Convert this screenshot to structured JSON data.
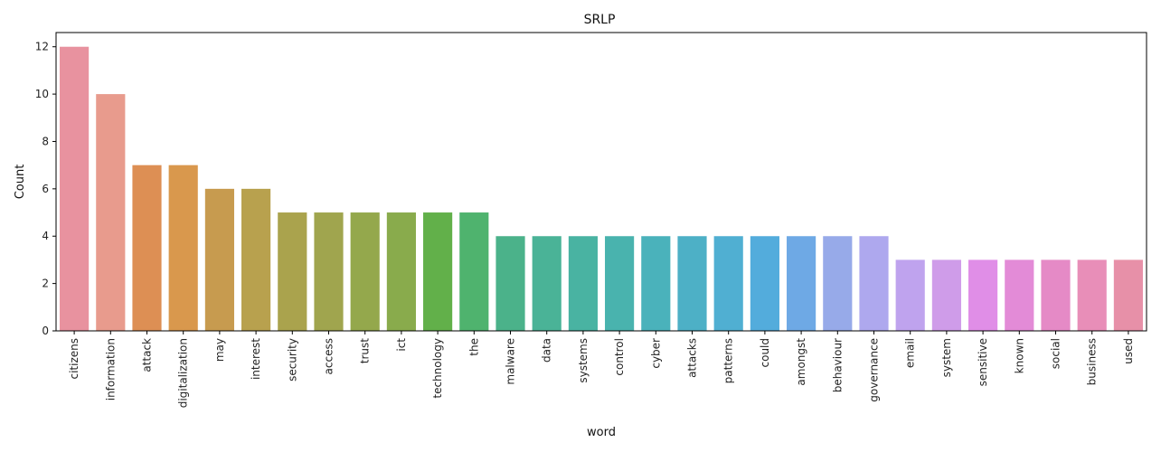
{
  "chart_data": {
    "type": "bar",
    "title": "SRLP",
    "xlabel": "word",
    "ylabel": "Count",
    "ylim": [
      0,
      12.6
    ],
    "yticks": [
      0,
      2,
      4,
      6,
      8,
      10,
      12
    ],
    "grid": false,
    "categories": [
      "citizens",
      "information",
      "attack",
      "digitalization",
      "may",
      "interest",
      "security",
      "access",
      "trust",
      "ict",
      "technology",
      "the",
      "malware",
      "data",
      "systems",
      "control",
      "cyber",
      "attacks",
      "patterns",
      "could",
      "amongst",
      "behaviour",
      "governance",
      "email",
      "system",
      "sensitive",
      "known",
      "social",
      "business",
      "used"
    ],
    "values": [
      12,
      10,
      7,
      7,
      6,
      6,
      5,
      5,
      5,
      5,
      5,
      5,
      4,
      4,
      4,
      4,
      4,
      4,
      4,
      4,
      4,
      4,
      4,
      3,
      3,
      3,
      3,
      3,
      3,
      3
    ],
    "colors": [
      "#e8929f",
      "#e89b8d",
      "#dd8f54",
      "#d9984d",
      "#c79b4f",
      "#b8a14e",
      "#aaa34d",
      "#a0a54e",
      "#94a84c",
      "#89ab4c",
      "#62b04a",
      "#4fb36e",
      "#4bb28a",
      "#4ab397",
      "#49b3a2",
      "#49b3ae",
      "#4ab2bb",
      "#4db0c6",
      "#50afd2",
      "#53acdc",
      "#6ea9e5",
      "#97aae9",
      "#aea8ee",
      "#bfa3ee",
      "#cf9ce9",
      "#e08ee7",
      "#e38bd7",
      "#e58ac6",
      "#e88eb8",
      "#e790a8"
    ]
  }
}
